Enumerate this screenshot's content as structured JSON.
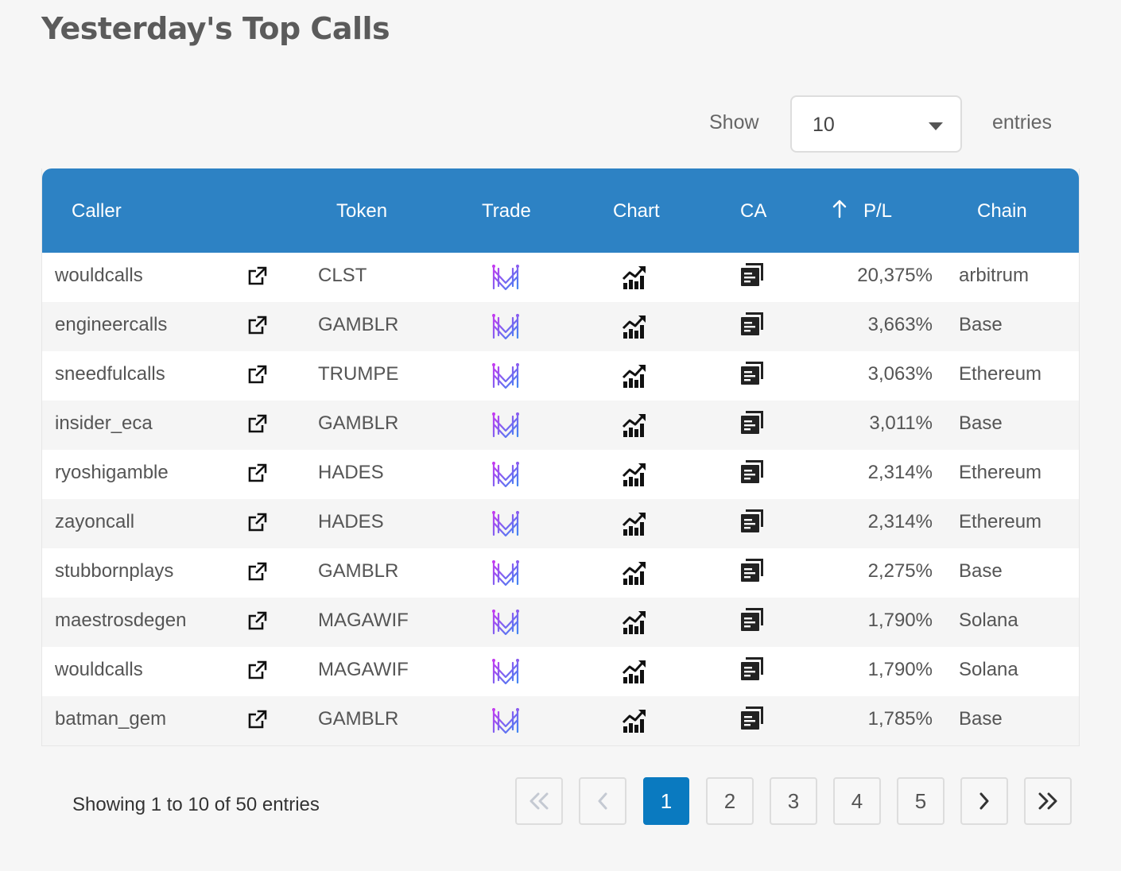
{
  "page": {
    "title": "Yesterday's Top Calls"
  },
  "length": {
    "show_label": "Show",
    "selected": "10",
    "entries_label": "entries"
  },
  "table": {
    "headers": {
      "caller": "Caller",
      "token": "Token",
      "trade": "Trade",
      "chart": "Chart",
      "ca": "CA",
      "pl": "P/L",
      "chain": "Chain"
    },
    "sort": {
      "column": "P/L",
      "direction": "descending",
      "icon": "arrow-up-icon"
    },
    "rows": [
      {
        "caller": "wouldcalls",
        "token": "CLST",
        "pl": "20,375%",
        "chain": "arbitrum"
      },
      {
        "caller": "engineercalls",
        "token": "GAMBLR",
        "pl": "3,663%",
        "chain": "Base"
      },
      {
        "caller": "sneedfulcalls",
        "token": "TRUMPE",
        "pl": "3,063%",
        "chain": "Ethereum"
      },
      {
        "caller": "insider_eca",
        "token": "GAMBLR",
        "pl": "3,011%",
        "chain": "Base"
      },
      {
        "caller": "ryoshigamble",
        "token": "HADES",
        "pl": "2,314%",
        "chain": "Ethereum"
      },
      {
        "caller": "zayoncall",
        "token": "HADES",
        "pl": "2,314%",
        "chain": "Ethereum"
      },
      {
        "caller": "stubbornplays",
        "token": "GAMBLR",
        "pl": "2,275%",
        "chain": "Base"
      },
      {
        "caller": "maestrosdegen",
        "token": "MAGAWIF",
        "pl": "1,790%",
        "chain": "Solana"
      },
      {
        "caller": "wouldcalls",
        "token": "MAGAWIF",
        "pl": "1,790%",
        "chain": "Solana"
      },
      {
        "caller": "batman_gem",
        "token": "GAMBLR",
        "pl": "1,785%",
        "chain": "Base"
      }
    ],
    "icons": {
      "link": "external-link-icon",
      "trade": "trade-logo-icon",
      "chart": "chart-bars-icon",
      "ca": "copy-icon"
    }
  },
  "info": "Showing 1 to 10 of 50 entries",
  "pagination": {
    "pages": [
      "1",
      "2",
      "3",
      "4",
      "5"
    ],
    "current": "1",
    "first_icon": "double-chevron-left-icon",
    "prev_icon": "chevron-left-icon",
    "next_icon": "chevron-right-icon",
    "last_icon": "double-chevron-right-icon"
  },
  "colors": {
    "header_bg": "#2d82c4",
    "active_page": "#0a7ac0",
    "page_bg": "#f6f6f6"
  }
}
